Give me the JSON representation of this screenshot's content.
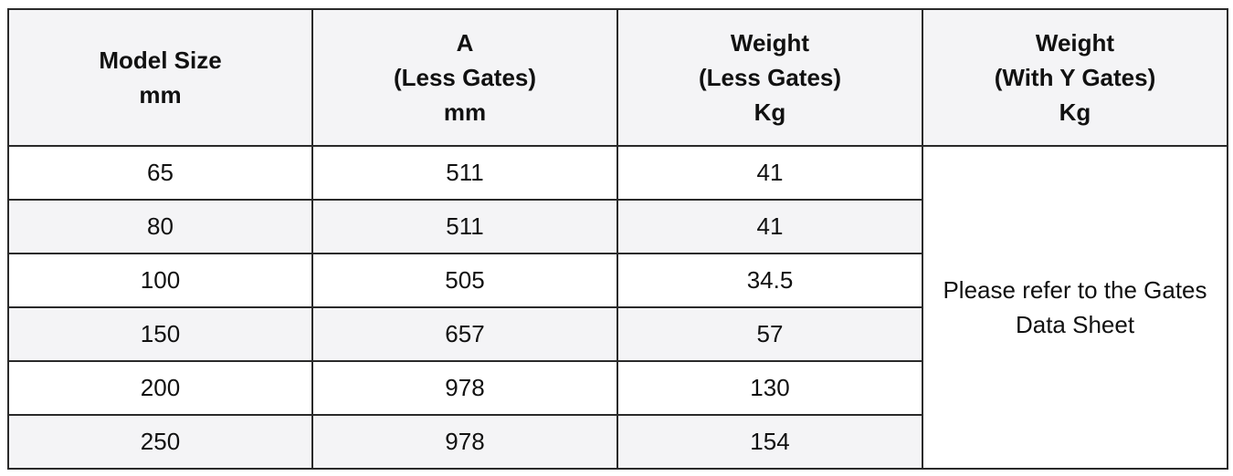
{
  "headers": [
    {
      "lines": [
        "Model Size",
        "mm"
      ]
    },
    {
      "lines": [
        "A",
        "(Less Gates)",
        "mm"
      ]
    },
    {
      "lines": [
        "Weight",
        "(Less Gates)",
        "Kg"
      ]
    },
    {
      "lines": [
        "Weight",
        "(With Y Gates)",
        "Kg"
      ]
    }
  ],
  "rows": [
    {
      "model_size": "65",
      "a": "511",
      "weight_less_gates": "41"
    },
    {
      "model_size": "80",
      "a": "511",
      "weight_less_gates": "41"
    },
    {
      "model_size": "100",
      "a": "505",
      "weight_less_gates": "34.5"
    },
    {
      "model_size": "150",
      "a": "657",
      "weight_less_gates": "57"
    },
    {
      "model_size": "200",
      "a": "978",
      "weight_less_gates": "130"
    },
    {
      "model_size": "250",
      "a": "978",
      "weight_less_gates": "154"
    }
  ],
  "merged_note": {
    "lines": [
      "Please refer to the Gates",
      "Data Sheet"
    ]
  },
  "colors": {
    "header_bg": "#f4f4f6",
    "alt_row_bg": "#f4f4f6",
    "border": "#2a2a2a",
    "text": "#111111"
  }
}
